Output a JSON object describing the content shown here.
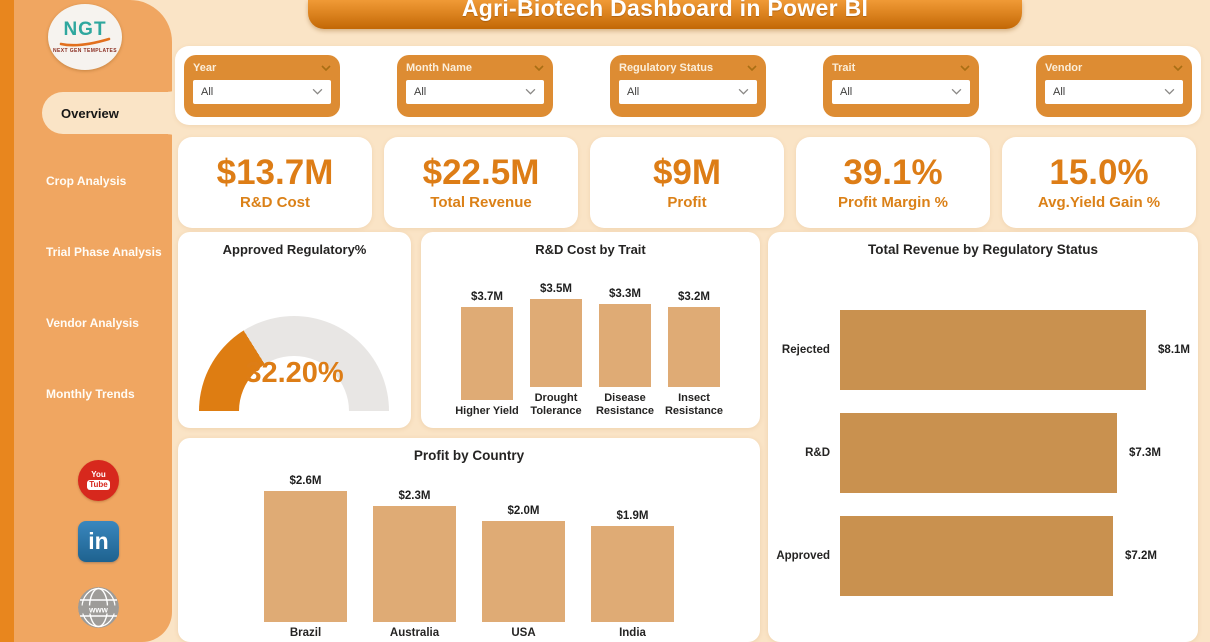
{
  "banner": {
    "title": "Agri-Biotech Dashboard in Power BI"
  },
  "sidebar": {
    "logo": {
      "text": "NGT",
      "subtext": "NEXT GEN TEMPLATES"
    },
    "items": [
      {
        "label": "Overview",
        "active": true
      },
      {
        "label": "Crop Analysis",
        "active": false
      },
      {
        "label": "Trial Phase Analysis",
        "active": false
      },
      {
        "label": "Vendor Analysis",
        "active": false
      },
      {
        "label": "Monthly Trends",
        "active": false
      }
    ],
    "social": [
      {
        "name": "youtube",
        "text_top": "You",
        "text_bottom": "Tube"
      },
      {
        "name": "linkedin",
        "text": "in"
      },
      {
        "name": "website",
        "text": "www"
      }
    ]
  },
  "filters": [
    {
      "label": "Year",
      "value": "All"
    },
    {
      "label": "Month Name",
      "value": "All"
    },
    {
      "label": "Regulatory Status",
      "value": "All"
    },
    {
      "label": "Trait",
      "value": "All"
    },
    {
      "label": "Vendor",
      "value": "All"
    }
  ],
  "kpis": [
    {
      "value": "$13.7M",
      "label": "R&D Cost"
    },
    {
      "value": "$22.5M",
      "label": "Total Revenue"
    },
    {
      "value": "$9M",
      "label": "Profit"
    },
    {
      "value": "39.1%",
      "label": "Profit Margin %"
    },
    {
      "value": "15.0%",
      "label": "Avg.Yield Gain %"
    }
  ],
  "chart_data": [
    {
      "type": "gauge",
      "title": "Approved Regulatory%",
      "value_pct": 32.2,
      "value_label": "32.20%",
      "range": [
        0,
        100
      ]
    },
    {
      "type": "bar",
      "title": "R&D Cost by Trait",
      "categories": [
        "Higher Yield",
        "Drought Tolerance",
        "Disease Resistance",
        "Insect Resistance"
      ],
      "values": [
        3.7,
        3.5,
        3.3,
        3.2
      ],
      "labels": [
        "$3.7M",
        "$3.5M",
        "$3.3M",
        "$3.2M"
      ]
    },
    {
      "type": "bar",
      "orientation": "horizontal",
      "title": "Total Revenue by Regulatory Status",
      "categories": [
        "Rejected",
        "R&D",
        "Approved"
      ],
      "values": [
        8.1,
        7.3,
        7.2
      ],
      "labels": [
        "$8.1M",
        "$7.3M",
        "$7.2M"
      ]
    },
    {
      "type": "bar",
      "title": "Profit by Country",
      "categories": [
        "Brazil",
        "Australia",
        "USA",
        "India"
      ],
      "values": [
        2.6,
        2.3,
        2.0,
        1.9
      ],
      "labels": [
        "$2.6M",
        "$2.3M",
        "$2.0M",
        "$1.9M"
      ]
    }
  ],
  "colors": {
    "accent_strip": "#E8861E",
    "sidebar": "#F0A661",
    "background": "#FAE4C6",
    "banner_top": "#F09A36",
    "banner_bottom": "#C26806",
    "filter_card": "#DD8C33",
    "kpi_value": "#DD7D16",
    "gauge_fill": "#DE7D12",
    "gauge_track": "#E8E6E4",
    "bar_tan": "#DFAB75",
    "bar_brown": "#C9914F",
    "title_text": "#252423"
  }
}
